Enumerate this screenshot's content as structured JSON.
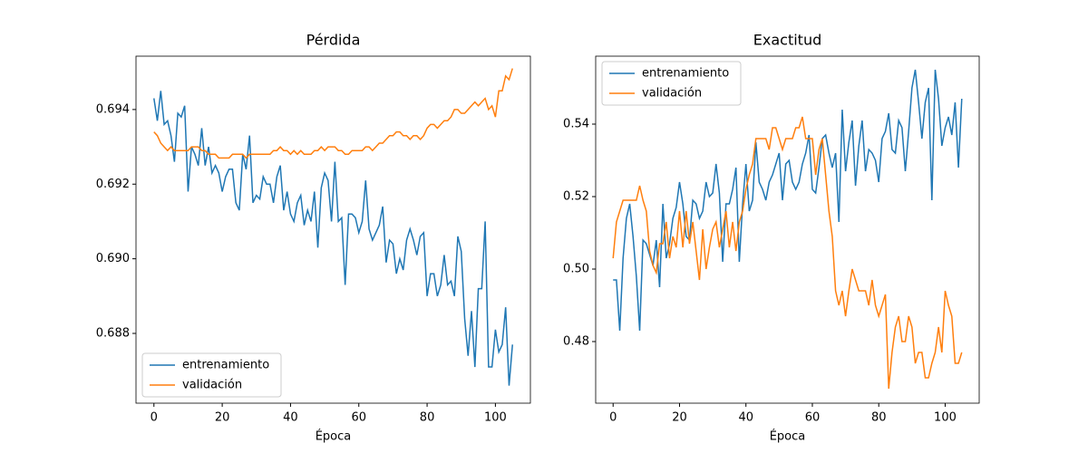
{
  "chart_data": [
    {
      "type": "line",
      "title": "Pérdida",
      "x_label": "Época",
      "x": [
        0,
        1,
        2,
        3,
        4,
        5,
        6,
        7,
        8,
        9,
        10,
        11,
        12,
        13,
        14,
        15,
        16,
        17,
        18,
        19,
        20,
        21,
        22,
        23,
        24,
        25,
        26,
        27,
        28,
        29,
        30,
        31,
        32,
        33,
        34,
        35,
        36,
        37,
        38,
        39,
        40,
        41,
        42,
        43,
        44,
        45,
        46,
        47,
        48,
        49,
        50,
        51,
        52,
        53,
        54,
        55,
        56,
        57,
        58,
        59,
        60,
        61,
        62,
        63,
        64,
        65,
        66,
        67,
        68,
        69,
        70,
        71,
        72,
        73,
        74,
        75,
        76,
        77,
        78,
        79,
        80,
        81,
        82,
        83,
        84,
        85,
        86,
        87,
        88,
        89,
        90,
        91,
        92,
        93,
        94,
        95,
        96,
        97,
        98,
        99,
        100,
        101,
        102,
        103,
        104,
        105
      ],
      "series": [
        {
          "name": "entrenamiento",
          "color": "#1f77b4",
          "values": [
            0.6943,
            0.6937,
            0.6945,
            0.6936,
            0.6937,
            0.6933,
            0.6926,
            0.6939,
            0.6938,
            0.6941,
            0.6918,
            0.693,
            0.6928,
            0.6925,
            0.6935,
            0.6925,
            0.693,
            0.6923,
            0.6925,
            0.6923,
            0.6918,
            0.6922,
            0.6924,
            0.6924,
            0.6915,
            0.6913,
            0.6928,
            0.6924,
            0.6933,
            0.6915,
            0.6917,
            0.6916,
            0.6922,
            0.692,
            0.692,
            0.6915,
            0.6922,
            0.6925,
            0.6913,
            0.6918,
            0.6912,
            0.691,
            0.6915,
            0.6917,
            0.6909,
            0.6913,
            0.691,
            0.6918,
            0.6903,
            0.6919,
            0.6923,
            0.6921,
            0.691,
            0.6926,
            0.691,
            0.6911,
            0.6893,
            0.6912,
            0.6912,
            0.6911,
            0.6907,
            0.691,
            0.6921,
            0.6908,
            0.6905,
            0.6907,
            0.6909,
            0.6914,
            0.6899,
            0.6905,
            0.6904,
            0.6896,
            0.69,
            0.6897,
            0.6905,
            0.6908,
            0.6905,
            0.6901,
            0.6906,
            0.6907,
            0.689,
            0.6896,
            0.6896,
            0.689,
            0.6893,
            0.6901,
            0.6893,
            0.6894,
            0.689,
            0.6906,
            0.6902,
            0.6884,
            0.6874,
            0.6886,
            0.6871,
            0.6892,
            0.6892,
            0.691,
            0.6871,
            0.6871,
            0.6881,
            0.6875,
            0.6877,
            0.6887,
            0.6866,
            0.6877
          ]
        },
        {
          "name": "validación",
          "color": "#ff7f0e",
          "values": [
            0.6934,
            0.6933,
            0.6931,
            0.693,
            0.6929,
            0.693,
            0.6929,
            0.6929,
            0.6929,
            0.6929,
            0.6929,
            0.693,
            0.693,
            0.693,
            0.6929,
            0.6929,
            0.6928,
            0.6928,
            0.6928,
            0.6927,
            0.6927,
            0.6927,
            0.6927,
            0.6928,
            0.6928,
            0.6928,
            0.6928,
            0.6927,
            0.6928,
            0.6928,
            0.6928,
            0.6928,
            0.6928,
            0.6928,
            0.6928,
            0.6929,
            0.6929,
            0.693,
            0.6929,
            0.6929,
            0.6928,
            0.6929,
            0.6928,
            0.6929,
            0.6928,
            0.6928,
            0.6928,
            0.6929,
            0.6929,
            0.693,
            0.6929,
            0.693,
            0.693,
            0.693,
            0.6929,
            0.6929,
            0.6928,
            0.6928,
            0.6929,
            0.6929,
            0.6929,
            0.6929,
            0.693,
            0.693,
            0.6929,
            0.693,
            0.6931,
            0.6931,
            0.6932,
            0.6933,
            0.6933,
            0.6934,
            0.6934,
            0.6933,
            0.6933,
            0.6932,
            0.6933,
            0.6933,
            0.6932,
            0.6933,
            0.6935,
            0.6936,
            0.6936,
            0.6935,
            0.6936,
            0.6937,
            0.6937,
            0.6938,
            0.694,
            0.694,
            0.6939,
            0.6939,
            0.694,
            0.6941,
            0.6942,
            0.6941,
            0.6942,
            0.6943,
            0.694,
            0.6941,
            0.6938,
            0.6945,
            0.6945,
            0.6949,
            0.6948,
            0.6951
          ]
        }
      ],
      "xlim": [
        -5.25,
        110.25
      ],
      "xticks": [
        0,
        20,
        40,
        60,
        80,
        100
      ],
      "ylim": [
        0.68613,
        0.69543
      ],
      "yticks": [
        {
          "value": 0.688,
          "label": "0.688"
        },
        {
          "value": 0.69,
          "label": "0.690"
        },
        {
          "value": 0.692,
          "label": "0.692"
        },
        {
          "value": 0.694,
          "label": "0.694"
        }
      ],
      "legend": "lower left",
      "grid": false
    },
    {
      "type": "line",
      "title": "Exactitud",
      "x_label": "Época",
      "x": [
        0,
        1,
        2,
        3,
        4,
        5,
        6,
        7,
        8,
        9,
        10,
        11,
        12,
        13,
        14,
        15,
        16,
        17,
        18,
        19,
        20,
        21,
        22,
        23,
        24,
        25,
        26,
        27,
        28,
        29,
        30,
        31,
        32,
        33,
        34,
        35,
        36,
        37,
        38,
        39,
        40,
        41,
        42,
        43,
        44,
        45,
        46,
        47,
        48,
        49,
        50,
        51,
        52,
        53,
        54,
        55,
        56,
        57,
        58,
        59,
        60,
        61,
        62,
        63,
        64,
        65,
        66,
        67,
        68,
        69,
        70,
        71,
        72,
        73,
        74,
        75,
        76,
        77,
        78,
        79,
        80,
        81,
        82,
        83,
        84,
        85,
        86,
        87,
        88,
        89,
        90,
        91,
        92,
        93,
        94,
        95,
        96,
        97,
        98,
        99,
        100,
        101,
        102,
        103,
        104,
        105
      ],
      "series": [
        {
          "name": "entrenamiento",
          "color": "#1f77b4",
          "values": [
            0.497,
            0.497,
            0.483,
            0.503,
            0.514,
            0.518,
            0.509,
            0.498,
            0.483,
            0.508,
            0.507,
            0.504,
            0.501,
            0.508,
            0.495,
            0.518,
            0.503,
            0.507,
            0.514,
            0.517,
            0.524,
            0.518,
            0.509,
            0.508,
            0.519,
            0.518,
            0.514,
            0.516,
            0.524,
            0.52,
            0.521,
            0.529,
            0.521,
            0.502,
            0.518,
            0.518,
            0.522,
            0.528,
            0.502,
            0.518,
            0.529,
            0.516,
            0.519,
            0.535,
            0.524,
            0.522,
            0.519,
            0.524,
            0.526,
            0.529,
            0.532,
            0.519,
            0.529,
            0.53,
            0.524,
            0.522,
            0.524,
            0.529,
            0.532,
            0.537,
            0.522,
            0.521,
            0.528,
            0.536,
            0.537,
            0.532,
            0.528,
            0.532,
            0.513,
            0.544,
            0.527,
            0.535,
            0.541,
            0.523,
            0.534,
            0.541,
            0.527,
            0.533,
            0.532,
            0.53,
            0.524,
            0.536,
            0.538,
            0.543,
            0.533,
            0.532,
            0.541,
            0.539,
            0.527,
            0.538,
            0.55,
            0.555,
            0.546,
            0.536,
            0.546,
            0.55,
            0.519,
            0.555,
            0.547,
            0.534,
            0.539,
            0.542,
            0.537,
            0.546,
            0.528,
            0.547
          ]
        },
        {
          "name": "validación",
          "color": "#ff7f0e",
          "values": [
            0.503,
            0.513,
            0.516,
            0.519,
            0.519,
            0.519,
            0.519,
            0.519,
            0.523,
            0.519,
            0.516,
            0.505,
            0.501,
            0.499,
            0.507,
            0.507,
            0.513,
            0.503,
            0.509,
            0.506,
            0.516,
            0.506,
            0.516,
            0.507,
            0.513,
            0.505,
            0.497,
            0.511,
            0.5,
            0.506,
            0.511,
            0.513,
            0.506,
            0.511,
            0.516,
            0.506,
            0.513,
            0.505,
            0.513,
            0.516,
            0.522,
            0.526,
            0.529,
            0.536,
            0.536,
            0.536,
            0.536,
            0.533,
            0.539,
            0.539,
            0.536,
            0.533,
            0.536,
            0.536,
            0.536,
            0.539,
            0.539,
            0.542,
            0.536,
            0.536,
            0.536,
            0.526,
            0.533,
            0.536,
            0.526,
            0.516,
            0.509,
            0.494,
            0.49,
            0.494,
            0.487,
            0.494,
            0.5,
            0.497,
            0.494,
            0.494,
            0.494,
            0.49,
            0.497,
            0.49,
            0.487,
            0.49,
            0.493,
            0.467,
            0.477,
            0.484,
            0.487,
            0.48,
            0.48,
            0.487,
            0.484,
            0.474,
            0.477,
            0.477,
            0.47,
            0.47,
            0.474,
            0.477,
            0.484,
            0.477,
            0.494,
            0.49,
            0.487,
            0.474,
            0.474,
            0.477
          ]
        }
      ],
      "xlim": [
        -5.25,
        110.25
      ],
      "xticks": [
        0,
        20,
        40,
        60,
        80,
        100
      ],
      "ylim": [
        0.463,
        0.55875
      ],
      "yticks": [
        0.48,
        {
          "value": 0.5,
          "label": "0.50"
        },
        0.52,
        0.54
      ],
      "legend": "upper left",
      "grid": false
    }
  ]
}
